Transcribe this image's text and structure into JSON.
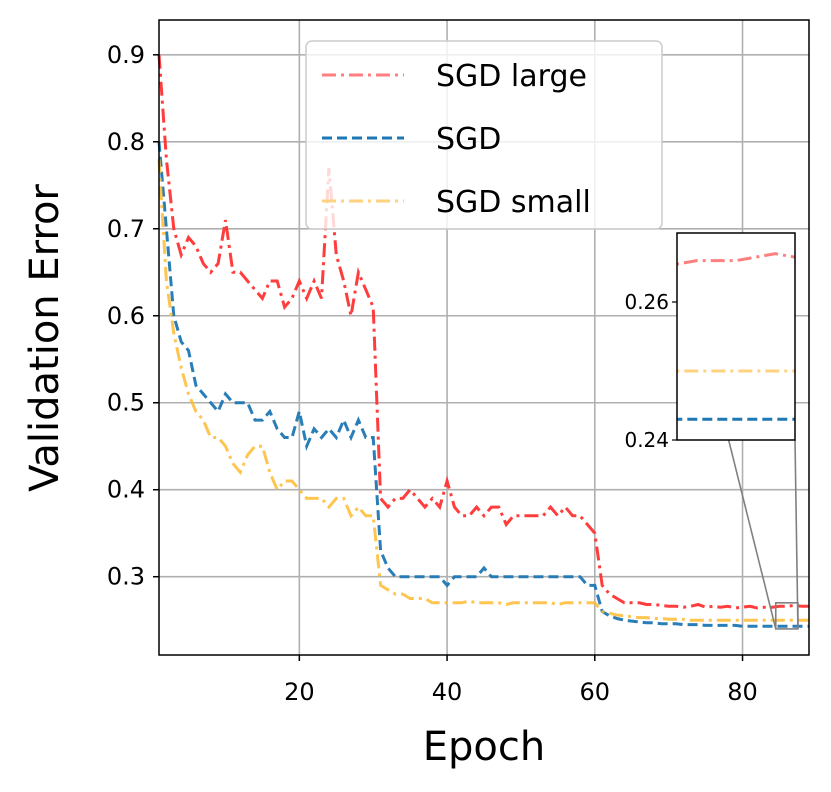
{
  "chart_data": {
    "type": "line",
    "xlabel": "Epoch",
    "ylabel": "Validation Error",
    "xlim": [
      1,
      89
    ],
    "ylim": [
      0.21,
      0.94
    ],
    "xticks": [
      20,
      40,
      60,
      80
    ],
    "yticks": [
      0.3,
      0.4,
      0.5,
      0.6,
      0.7,
      0.8,
      0.9
    ],
    "xtick_labels": [
      "20",
      "40",
      "60",
      "80"
    ],
    "ytick_labels": [
      "0.3",
      "0.4",
      "0.5",
      "0.6",
      "0.7",
      "0.8",
      "0.9"
    ],
    "grid": true,
    "legend_position": "top-center",
    "series": [
      {
        "name": "SGD large",
        "color": "#ff3333",
        "legend_color": "#ff7f7f",
        "dash": "dashdot",
        "x": [
          1,
          2,
          3,
          4,
          5,
          6,
          7,
          8,
          9,
          10,
          11,
          12,
          13,
          14,
          15,
          16,
          17,
          18,
          19,
          20,
          21,
          22,
          23,
          24,
          25,
          26,
          27,
          28,
          29,
          30,
          31,
          32,
          33,
          34,
          35,
          36,
          37,
          38,
          39,
          40,
          41,
          42,
          43,
          44,
          45,
          46,
          47,
          48,
          49,
          50,
          51,
          52,
          53,
          54,
          55,
          56,
          57,
          58,
          59,
          60,
          61,
          62,
          63,
          64,
          65,
          66,
          67,
          68,
          69,
          70,
          71,
          72,
          73,
          74,
          75,
          76,
          77,
          78,
          79,
          80,
          81,
          82,
          83,
          84,
          85,
          86,
          87,
          88,
          89
        ],
        "values": [
          0.9,
          0.78,
          0.7,
          0.67,
          0.69,
          0.68,
          0.66,
          0.65,
          0.66,
          0.71,
          0.65,
          0.65,
          0.64,
          0.63,
          0.62,
          0.64,
          0.64,
          0.61,
          0.62,
          0.64,
          0.62,
          0.64,
          0.62,
          0.77,
          0.67,
          0.64,
          0.6,
          0.65,
          0.63,
          0.61,
          0.39,
          0.38,
          0.39,
          0.39,
          0.4,
          0.39,
          0.38,
          0.39,
          0.38,
          0.41,
          0.38,
          0.37,
          0.37,
          0.38,
          0.37,
          0.38,
          0.38,
          0.36,
          0.37,
          0.37,
          0.37,
          0.37,
          0.37,
          0.38,
          0.37,
          0.38,
          0.37,
          0.37,
          0.36,
          0.35,
          0.29,
          0.28,
          0.275,
          0.27,
          0.27,
          0.27,
          0.268,
          0.268,
          0.267,
          0.266,
          0.266,
          0.265,
          0.266,
          0.268,
          0.265,
          0.266,
          0.265,
          0.266,
          0.264,
          0.265,
          0.266,
          0.264,
          0.265,
          0.265,
          0.266,
          0.266,
          0.267,
          0.266,
          0.266
        ]
      },
      {
        "name": "SGD",
        "color": "#1f77b4",
        "legend_color": "#1f77b4",
        "dash": "dashed",
        "x": [
          1,
          2,
          3,
          4,
          5,
          6,
          7,
          8,
          9,
          10,
          11,
          12,
          13,
          14,
          15,
          16,
          17,
          18,
          19,
          20,
          21,
          22,
          23,
          24,
          25,
          26,
          27,
          28,
          29,
          30,
          31,
          32,
          33,
          34,
          35,
          36,
          37,
          38,
          39,
          40,
          41,
          42,
          43,
          44,
          45,
          46,
          47,
          48,
          49,
          50,
          51,
          52,
          53,
          54,
          55,
          56,
          57,
          58,
          59,
          60,
          61,
          62,
          63,
          64,
          65,
          66,
          67,
          68,
          69,
          70,
          71,
          72,
          73,
          74,
          75,
          76,
          77,
          78,
          79,
          80,
          81,
          82,
          83,
          84,
          85,
          86,
          87,
          88,
          89
        ],
        "values": [
          0.8,
          0.7,
          0.6,
          0.57,
          0.56,
          0.52,
          0.51,
          0.5,
          0.49,
          0.51,
          0.5,
          0.5,
          0.5,
          0.48,
          0.48,
          0.49,
          0.47,
          0.46,
          0.46,
          0.49,
          0.45,
          0.47,
          0.46,
          0.47,
          0.46,
          0.48,
          0.46,
          0.48,
          0.46,
          0.46,
          0.33,
          0.31,
          0.3,
          0.3,
          0.3,
          0.3,
          0.3,
          0.3,
          0.3,
          0.29,
          0.3,
          0.3,
          0.3,
          0.3,
          0.31,
          0.3,
          0.3,
          0.3,
          0.3,
          0.3,
          0.3,
          0.3,
          0.3,
          0.3,
          0.3,
          0.3,
          0.3,
          0.3,
          0.29,
          0.29,
          0.26,
          0.255,
          0.252,
          0.25,
          0.249,
          0.248,
          0.247,
          0.247,
          0.246,
          0.246,
          0.246,
          0.245,
          0.245,
          0.245,
          0.244,
          0.244,
          0.244,
          0.244,
          0.244,
          0.243,
          0.243,
          0.243,
          0.243,
          0.243,
          0.243,
          0.243,
          0.243,
          0.243,
          0.243
        ]
      },
      {
        "name": "SGD small",
        "color": "#ffbb33",
        "legend_color": "#ffd27f",
        "dash": "dashdot",
        "x": [
          1,
          2,
          3,
          4,
          5,
          6,
          7,
          8,
          9,
          10,
          11,
          12,
          13,
          14,
          15,
          16,
          17,
          18,
          19,
          20,
          21,
          22,
          23,
          24,
          25,
          26,
          27,
          28,
          29,
          30,
          31,
          32,
          33,
          34,
          35,
          36,
          37,
          38,
          39,
          40,
          41,
          42,
          43,
          44,
          45,
          46,
          47,
          48,
          49,
          50,
          51,
          52,
          53,
          54,
          55,
          56,
          57,
          58,
          59,
          60,
          61,
          62,
          63,
          64,
          65,
          66,
          67,
          68,
          69,
          70,
          71,
          72,
          73,
          74,
          75,
          76,
          77,
          78,
          79,
          80,
          81,
          82,
          83,
          84,
          85,
          86,
          87,
          88,
          89
        ],
        "values": [
          0.78,
          0.64,
          0.58,
          0.54,
          0.51,
          0.49,
          0.48,
          0.46,
          0.46,
          0.45,
          0.43,
          0.42,
          0.44,
          0.45,
          0.45,
          0.42,
          0.4,
          0.41,
          0.41,
          0.4,
          0.39,
          0.39,
          0.39,
          0.38,
          0.39,
          0.39,
          0.37,
          0.38,
          0.37,
          0.37,
          0.29,
          0.285,
          0.28,
          0.28,
          0.275,
          0.275,
          0.275,
          0.27,
          0.27,
          0.27,
          0.27,
          0.27,
          0.272,
          0.27,
          0.27,
          0.27,
          0.27,
          0.268,
          0.27,
          0.27,
          0.27,
          0.27,
          0.27,
          0.27,
          0.268,
          0.27,
          0.27,
          0.27,
          0.27,
          0.27,
          0.26,
          0.258,
          0.256,
          0.255,
          0.254,
          0.253,
          0.253,
          0.252,
          0.252,
          0.251,
          0.251,
          0.251,
          0.25,
          0.25,
          0.25,
          0.25,
          0.25,
          0.25,
          0.25,
          0.25,
          0.25,
          0.25,
          0.25,
          0.25,
          0.25,
          0.25,
          0.25,
          0.25,
          0.25
        ]
      }
    ],
    "inset": {
      "xlim": [
        84.5,
        87.5
      ],
      "ylim": [
        0.24,
        0.27
      ],
      "yticks": [
        0.24,
        0.26
      ],
      "ytick_labels": [
        "0.24",
        "0.26"
      ]
    }
  }
}
